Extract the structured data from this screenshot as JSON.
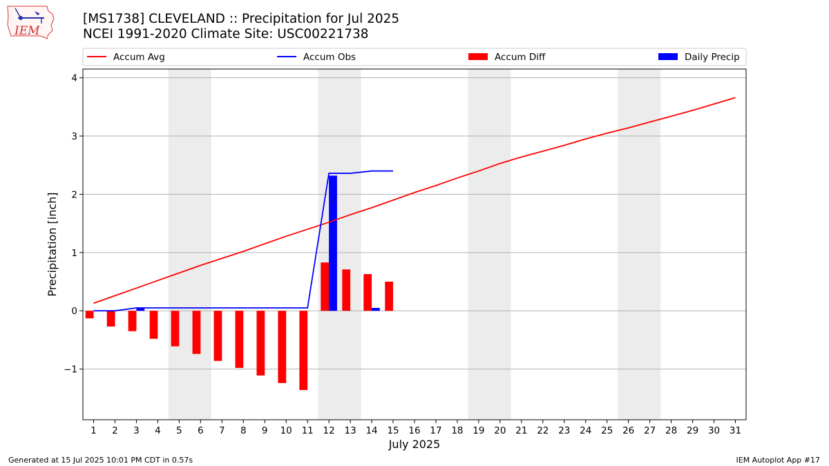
{
  "header": {
    "title_line1": "[MS1738] CLEVELAND :: Precipitation for Jul 2025",
    "title_line2": "NCEI 1991-2020 Climate Site: USC00221738"
  },
  "logo": {
    "text": "IEM"
  },
  "footer": {
    "left": "Generated at 15 Jul 2025 10:01 PM CDT in 0.57s",
    "right": "IEM Autoplot App #17"
  },
  "colors": {
    "avg": "#ff0000",
    "obs": "#0000ff",
    "diff": "#ff0000",
    "daily": "#0000ff",
    "weekend_shade": "#ececec",
    "grid": "#b0b0b0"
  },
  "chart_data": {
    "type": "bar",
    "xlabel": "July 2025",
    "ylabel": "Precipitation [inch]",
    "xlim": [
      0.5,
      31.5
    ],
    "ylim": [
      -1.87,
      4.15
    ],
    "yticks": [
      -1,
      0,
      1,
      2,
      3,
      4
    ],
    "ytick_labels": [
      "−1",
      "0",
      "1",
      "2",
      "3",
      "4"
    ],
    "grid": "horizontal",
    "legend_placement": "top",
    "shaded_days": [
      [
        5,
        6
      ],
      [
        12,
        13
      ],
      [
        19,
        20
      ],
      [
        26,
        27
      ]
    ],
    "days": [
      1,
      2,
      3,
      4,
      5,
      6,
      7,
      8,
      9,
      10,
      11,
      12,
      13,
      14,
      15,
      16,
      17,
      18,
      19,
      20,
      21,
      22,
      23,
      24,
      25,
      26,
      27,
      28,
      29,
      30,
      31
    ],
    "series": [
      {
        "name": "Accum Avg",
        "type": "line",
        "values": [
          0.13,
          0.26,
          0.39,
          0.52,
          0.65,
          0.78,
          0.9,
          1.02,
          1.15,
          1.28,
          1.4,
          1.52,
          1.65,
          1.77,
          1.9,
          2.03,
          2.15,
          2.28,
          2.4,
          2.53,
          2.64,
          2.74,
          2.84,
          2.95,
          3.05,
          3.14,
          3.24,
          3.34,
          3.44,
          3.55,
          3.66
        ]
      },
      {
        "name": "Accum Obs",
        "type": "line",
        "values": [
          0.0,
          0.0,
          0.05,
          0.05,
          0.05,
          0.05,
          0.05,
          0.05,
          0.05,
          0.05,
          0.05,
          2.36,
          2.36,
          2.4,
          2.4
        ]
      },
      {
        "name": "Accum Diff",
        "type": "bar",
        "values": [
          -0.13,
          -0.27,
          -0.35,
          -0.48,
          -0.61,
          -0.74,
          -0.86,
          -0.98,
          -1.11,
          -1.24,
          -1.36,
          0.83,
          0.71,
          0.63,
          0.5
        ]
      },
      {
        "name": "Daily Precip",
        "type": "bar",
        "values": [
          0.0,
          0.0,
          0.05,
          0.0,
          0.0,
          0.0,
          0.0,
          0.0,
          0.0,
          0.0,
          0.0,
          2.32,
          0.0,
          0.05,
          0.0
        ]
      }
    ]
  }
}
